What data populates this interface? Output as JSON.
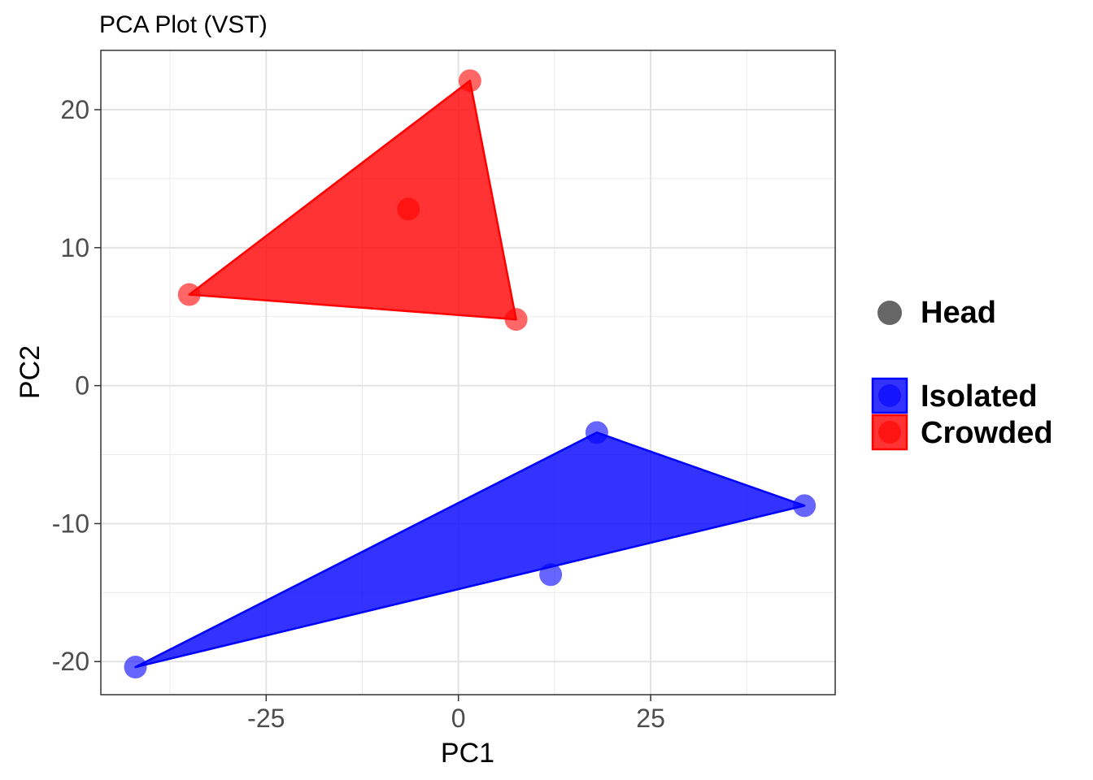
{
  "chart_data": {
    "type": "scatter",
    "title": "PCA Plot (VST)",
    "xlabel": "PC1",
    "ylabel": "PC2",
    "xlim": [
      -46.5,
      49.0
    ],
    "ylim": [
      -22.4,
      24.3
    ],
    "x_ticks": [
      -25,
      0,
      25
    ],
    "x_tick_labels": [
      "-25",
      "0",
      "25"
    ],
    "y_ticks": [
      -20,
      -10,
      0,
      10,
      20
    ],
    "y_tick_labels": [
      "-20",
      "-10",
      "0",
      "10",
      "20"
    ],
    "grid": true,
    "legend_position": "right",
    "shape_legend": {
      "label": "Head",
      "color": "#666666"
    },
    "series": [
      {
        "name": "Isolated",
        "color": "#0000ff",
        "points": [
          [
            -42.0,
            -20.4
          ],
          [
            12.0,
            -13.7
          ],
          [
            18.0,
            -3.4
          ],
          [
            45.0,
            -8.7
          ]
        ],
        "hull": [
          [
            -42.0,
            -20.4
          ],
          [
            18.0,
            -3.4
          ],
          [
            45.0,
            -8.7
          ]
        ]
      },
      {
        "name": "Crowded",
        "color": "#ff0000",
        "points": [
          [
            -35.0,
            6.6
          ],
          [
            -6.5,
            12.8
          ],
          [
            1.5,
            22.1
          ],
          [
            7.5,
            4.8
          ]
        ],
        "hull": [
          [
            -35.0,
            6.6
          ],
          [
            1.5,
            22.1
          ],
          [
            7.5,
            4.8
          ]
        ]
      }
    ]
  }
}
